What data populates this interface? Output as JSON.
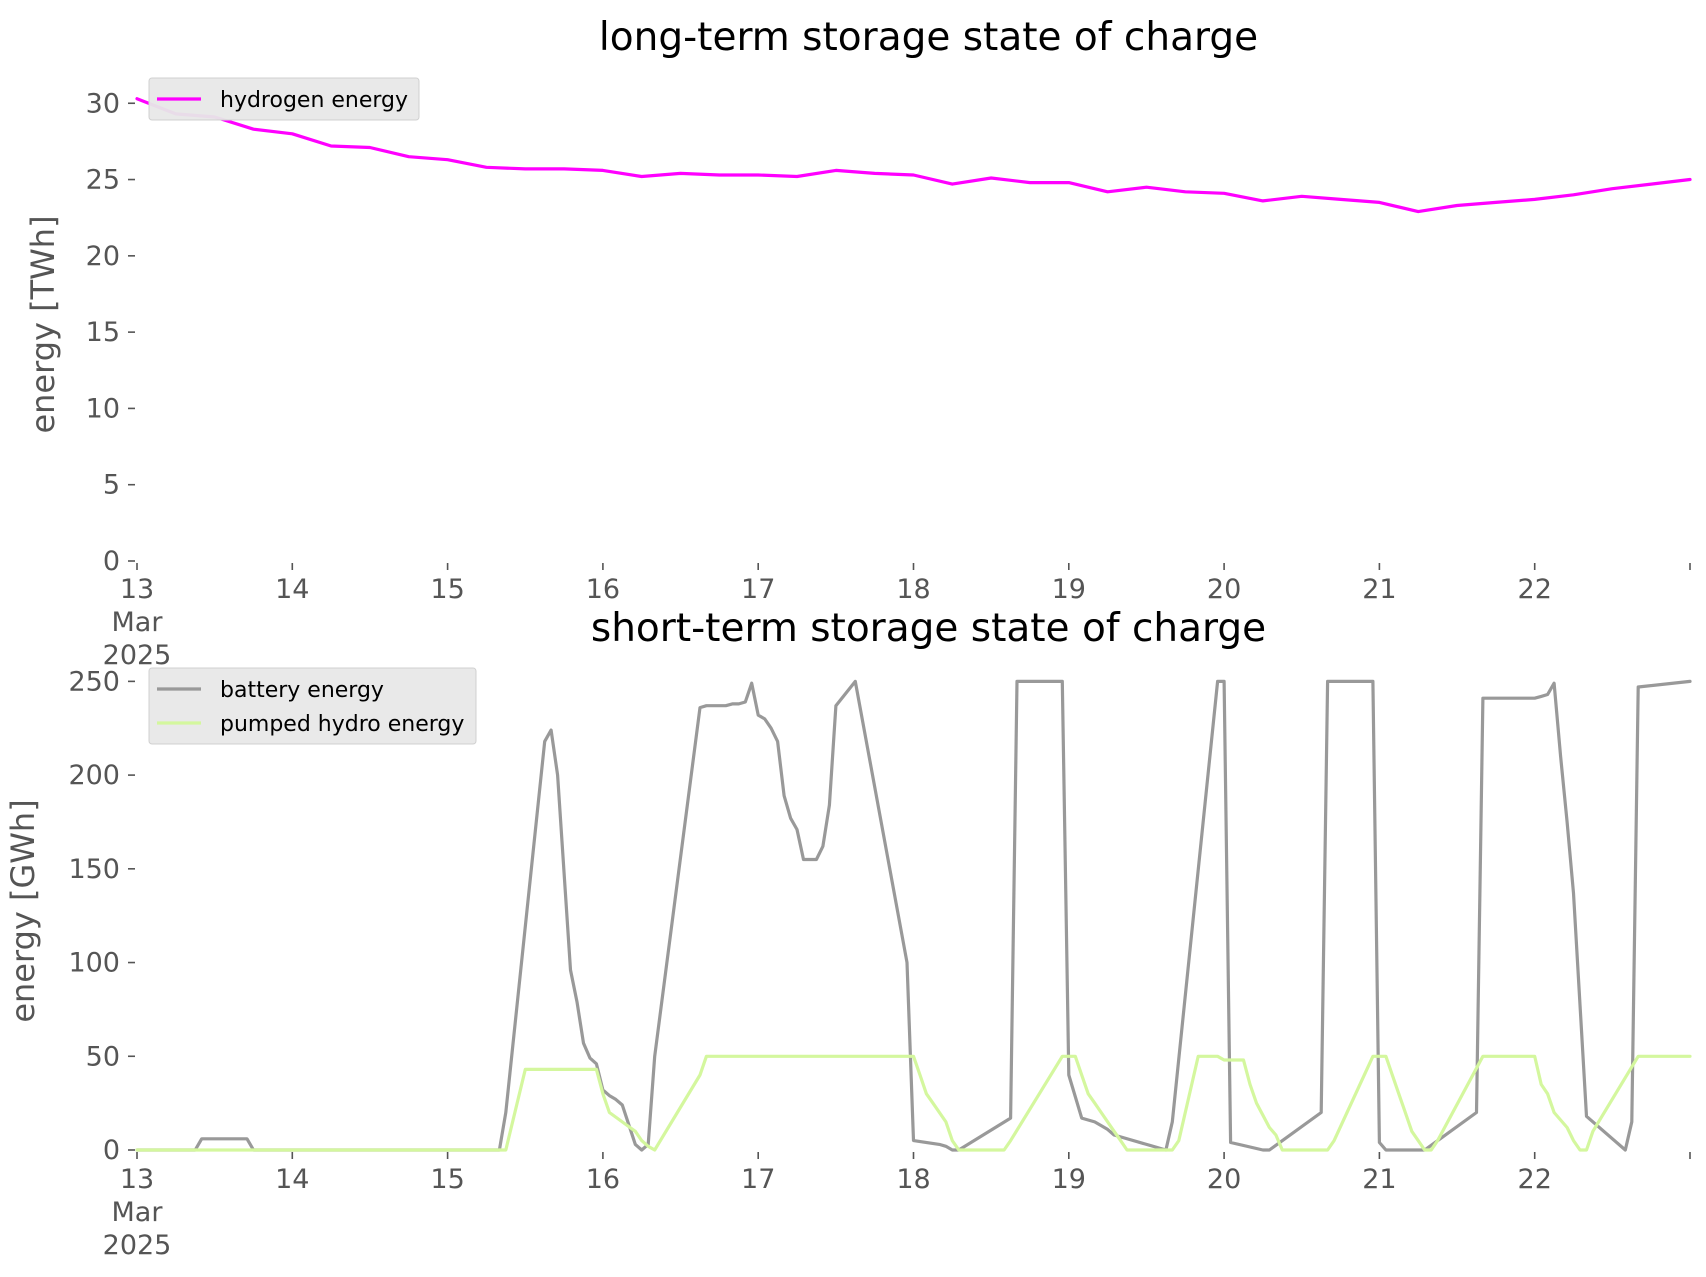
{
  "chart_data": [
    {
      "type": "line",
      "title": "long-term storage state of charge",
      "ylabel": "energy [TWh]",
      "xlabel": "",
      "ylim": [
        0,
        31
      ],
      "xlim": [
        0,
        240
      ],
      "grid": false,
      "legend_position": "top-left",
      "x_unit": "hours since 13 Mar 2025 00:00",
      "yticks": [
        {
          "value": 0,
          "label": "0"
        },
        {
          "value": 5,
          "label": "5"
        },
        {
          "value": 10,
          "label": "10"
        },
        {
          "value": 15,
          "label": "15"
        },
        {
          "value": 20,
          "label": "20"
        },
        {
          "value": 25,
          "label": "25"
        },
        {
          "value": 30,
          "label": "30"
        }
      ],
      "xticks": [
        {
          "value": 0,
          "lines": [
            "13",
            "Mar",
            "2025"
          ]
        },
        {
          "value": 24,
          "lines": [
            "14"
          ]
        },
        {
          "value": 48,
          "lines": [
            "15"
          ]
        },
        {
          "value": 72,
          "lines": [
            "16"
          ]
        },
        {
          "value": 96,
          "lines": [
            "17"
          ]
        },
        {
          "value": 120,
          "lines": [
            "18"
          ]
        },
        {
          "value": 144,
          "lines": [
            "19"
          ]
        },
        {
          "value": 168,
          "lines": [
            "20"
          ]
        },
        {
          "value": 192,
          "lines": [
            "21"
          ]
        },
        {
          "value": 216,
          "lines": [
            "22"
          ]
        },
        {
          "value": 240,
          "lines": [
            ""
          ]
        }
      ],
      "series": [
        {
          "name": "hydrogen energy",
          "color": "#ff00ff",
          "x": [
            0,
            6,
            12,
            18,
            24,
            30,
            36,
            42,
            48,
            54,
            60,
            66,
            72,
            78,
            84,
            90,
            96,
            102,
            108,
            114,
            120,
            126,
            132,
            138,
            144,
            150,
            156,
            162,
            168,
            174,
            180,
            186,
            192,
            198,
            204,
            210,
            216,
            222,
            228,
            234,
            240
          ],
          "values": [
            30.3,
            29.3,
            29.1,
            28.3,
            28.0,
            27.2,
            27.1,
            26.5,
            26.3,
            25.8,
            25.7,
            25.7,
            25.6,
            25.2,
            25.4,
            25.3,
            25.3,
            25.2,
            25.6,
            25.4,
            25.3,
            24.7,
            25.1,
            24.8,
            24.8,
            24.2,
            24.5,
            24.2,
            24.1,
            23.6,
            23.9,
            23.7,
            23.5,
            22.9,
            23.3,
            23.5,
            23.7,
            24.0,
            24.4,
            24.7,
            25.0
          ]
        }
      ]
    },
    {
      "type": "line",
      "title": "short-term storage state of charge",
      "ylabel": "energy [GWh]",
      "xlabel": "",
      "ylim": [
        0,
        255
      ],
      "xlim": [
        0,
        240
      ],
      "grid": false,
      "legend_position": "top-left",
      "x_unit": "hours since 13 Mar 2025 00:00",
      "yticks": [
        {
          "value": 0,
          "label": "0"
        },
        {
          "value": 50,
          "label": "50"
        },
        {
          "value": 100,
          "label": "100"
        },
        {
          "value": 150,
          "label": "150"
        },
        {
          "value": 200,
          "label": "200"
        },
        {
          "value": 250,
          "label": "250"
        }
      ],
      "xticks": [
        {
          "value": 0,
          "lines": [
            "13",
            "Mar",
            "2025"
          ]
        },
        {
          "value": 24,
          "lines": [
            "14"
          ]
        },
        {
          "value": 48,
          "lines": [
            "15"
          ]
        },
        {
          "value": 72,
          "lines": [
            "16"
          ]
        },
        {
          "value": 96,
          "lines": [
            "17"
          ]
        },
        {
          "value": 120,
          "lines": [
            "18"
          ]
        },
        {
          "value": 144,
          "lines": [
            "19"
          ]
        },
        {
          "value": 168,
          "lines": [
            "20"
          ]
        },
        {
          "value": 192,
          "lines": [
            "21"
          ]
        },
        {
          "value": 216,
          "lines": [
            "22"
          ]
        },
        {
          "value": 240,
          "lines": [
            ""
          ]
        }
      ],
      "series": [
        {
          "name": "battery energy",
          "color": "#999999",
          "x": [
            0,
            9,
            10,
            17,
            18,
            56,
            57,
            63,
            64,
            65,
            67,
            68,
            69,
            70,
            71,
            72,
            73,
            74,
            75,
            77,
            78,
            79,
            80,
            87,
            88,
            90,
            91,
            92,
            93,
            94,
            95,
            96,
            97,
            98,
            99,
            100,
            101,
            102,
            103,
            104,
            105,
            106,
            107,
            108,
            111,
            119,
            120,
            124,
            125,
            126,
            127,
            135,
            136,
            143,
            144,
            146,
            147,
            148,
            149,
            150,
            151,
            159,
            160,
            167,
            168,
            169,
            174,
            175,
            183,
            184,
            191,
            192,
            193,
            198,
            199,
            207,
            208,
            209,
            216,
            217,
            218,
            219,
            220,
            221,
            222,
            224,
            230,
            231,
            232,
            240
          ],
          "values": [
            0,
            0,
            6,
            6,
            0,
            0,
            20,
            218,
            224,
            200,
            96,
            79,
            57,
            49,
            46,
            32,
            29,
            27,
            24,
            3,
            0,
            3,
            50,
            236,
            237,
            237,
            237,
            238,
            238,
            239,
            249,
            232,
            230,
            225,
            218,
            189,
            177,
            171,
            155,
            155,
            155,
            162,
            184,
            237,
            250,
            100,
            5,
            3,
            2,
            0,
            0,
            17,
            250,
            250,
            40,
            17,
            16,
            15,
            13,
            11,
            8,
            0,
            15,
            250,
            250,
            4,
            0,
            0,
            20,
            250,
            250,
            4,
            0,
            0,
            0,
            20,
            241,
            241,
            241,
            242,
            243,
            249,
            210,
            175,
            137,
            18,
            0,
            15,
            247,
            250
          ]
        },
        {
          "name": "pumped hydro energy",
          "color": "#d4f79e",
          "x": [
            0,
            57,
            60,
            71,
            72,
            73,
            77,
            78,
            79,
            80,
            87,
            88,
            118,
            120,
            121,
            122,
            123,
            125,
            126,
            127,
            134,
            135,
            143,
            144,
            145,
            146,
            147,
            148,
            149,
            151,
            152,
            153,
            160,
            161,
            164,
            165,
            167,
            168,
            169,
            170,
            171,
            172,
            173,
            175,
            176,
            177,
            184,
            185,
            191,
            192,
            193,
            194,
            195,
            196,
            197,
            199,
            200,
            201,
            208,
            209,
            215,
            216,
            217,
            218,
            219,
            221,
            222,
            223,
            224,
            225,
            232,
            233,
            240
          ],
          "values": [
            0,
            0,
            43,
            43,
            30,
            20,
            10,
            5,
            2,
            0,
            40,
            50,
            50,
            50,
            40,
            30,
            25,
            15,
            5,
            0,
            0,
            5,
            50,
            50,
            50,
            40,
            30,
            25,
            20,
            10,
            5,
            0,
            0,
            5,
            50,
            50,
            50,
            48,
            48,
            48,
            48,
            35,
            25,
            12,
            8,
            0,
            0,
            5,
            50,
            50,
            50,
            40,
            30,
            20,
            10,
            0,
            0,
            5,
            50,
            50,
            50,
            50,
            35,
            30,
            20,
            12,
            5,
            0,
            0,
            10,
            50,
            50,
            50
          ]
        }
      ]
    }
  ]
}
